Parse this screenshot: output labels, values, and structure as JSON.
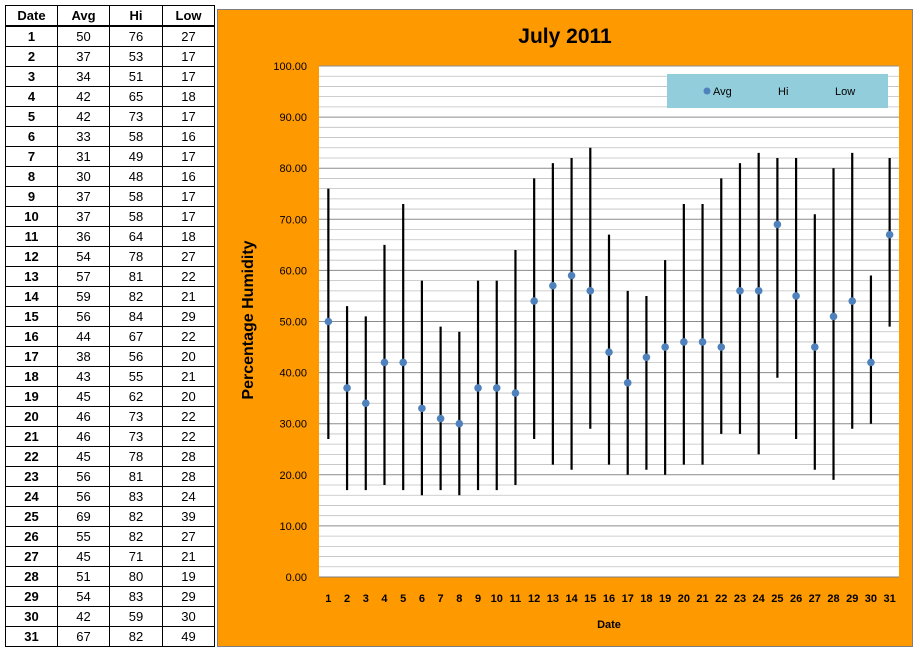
{
  "table": {
    "headers": [
      "Date",
      "Avg",
      "Hi",
      "Low"
    ]
  },
  "chart_data": {
    "type": "scatter",
    "title": "July 2011",
    "xlabel": "Date",
    "ylabel": "Percentage Humidity",
    "ylim": [
      0,
      100
    ],
    "ytick_labels": [
      "0.00",
      "10.00",
      "20.00",
      "30.00",
      "40.00",
      "50.00",
      "60.00",
      "70.00",
      "80.00",
      "90.00",
      "100.00"
    ],
    "grid": true,
    "legend_position": "top-right",
    "legend": [
      "Avg",
      "Hi",
      "Low"
    ],
    "x": [
      1,
      2,
      3,
      4,
      5,
      6,
      7,
      8,
      9,
      10,
      11,
      12,
      13,
      14,
      15,
      16,
      17,
      18,
      19,
      20,
      21,
      22,
      23,
      24,
      25,
      26,
      27,
      28,
      29,
      30,
      31
    ],
    "series": [
      {
        "name": "Avg",
        "values": [
          50,
          37,
          34,
          42,
          42,
          33,
          31,
          30,
          37,
          37,
          36,
          54,
          57,
          59,
          56,
          44,
          38,
          43,
          45,
          46,
          46,
          45,
          56,
          56,
          69,
          55,
          45,
          51,
          54,
          42,
          67
        ]
      },
      {
        "name": "Hi",
        "values": [
          76,
          53,
          51,
          65,
          73,
          58,
          49,
          48,
          58,
          58,
          64,
          78,
          81,
          82,
          84,
          67,
          56,
          55,
          62,
          73,
          73,
          78,
          81,
          83,
          82,
          82,
          71,
          80,
          83,
          59,
          82
        ]
      },
      {
        "name": "Low",
        "values": [
          27,
          17,
          17,
          18,
          17,
          16,
          17,
          16,
          17,
          17,
          18,
          27,
          22,
          21,
          29,
          22,
          20,
          21,
          20,
          22,
          22,
          28,
          28,
          24,
          39,
          27,
          21,
          19,
          29,
          30,
          49
        ]
      }
    ],
    "colors": {
      "avg_marker": "#4f81bd",
      "range_line": "#000000",
      "panel_background": "#ff9900",
      "plot_background": "#ffffff",
      "legend_background": "#92cddc",
      "gridline": "#a6a6a6"
    }
  }
}
